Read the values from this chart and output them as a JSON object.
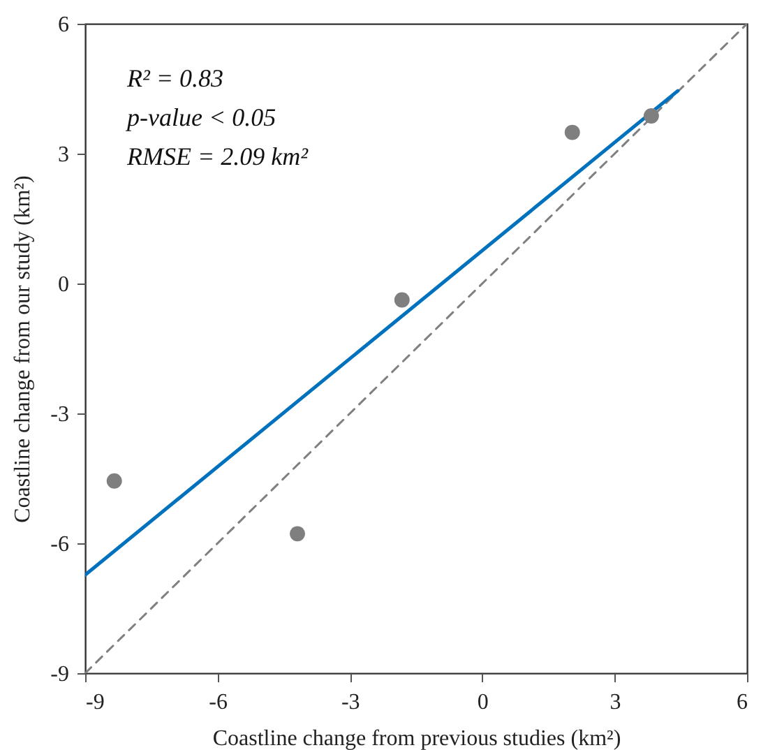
{
  "chart_data": {
    "type": "scatter",
    "xlabel": "Coastline change from previous studies (km²)",
    "ylabel": "Coastline change from our study (km²)",
    "xlim": [
      -9,
      6
    ],
    "ylim": [
      -9,
      6
    ],
    "xticks": [
      {
        "value": -9,
        "label": "-9"
      },
      {
        "value": -6,
        "label": "-6"
      },
      {
        "value": -3,
        "label": "-3"
      },
      0,
      3,
      6
    ],
    "yticks": [
      {
        "value": -9,
        "label": "-9"
      },
      {
        "value": -6,
        "label": "-6"
      },
      {
        "value": -3,
        "label": "-3"
      },
      0,
      3,
      6
    ],
    "marker": "circle",
    "annotations": [
      "R² = 0.83",
      "p-value < 0.05",
      "RMSE = 2.09 km²"
    ],
    "series": [
      {
        "type": "line",
        "marker": "none",
        "color": "#808080",
        "line_style": "dashed",
        "x": [
          -9,
          6
        ],
        "values": [
          -9,
          6
        ]
      },
      {
        "type": "line",
        "marker": "none",
        "color": "#0072bd",
        "line_style": "solid",
        "x": [
          -9,
          4.43
        ],
        "values": [
          -6.73,
          4.45
        ]
      },
      {
        "color": "#7f7f7f",
        "x": [
          -8.34,
          -4.19,
          -1.82,
          2.04,
          3.83
        ],
        "values": [
          -4.56,
          -5.78,
          -0.38,
          3.49,
          3.87
        ]
      }
    ]
  }
}
